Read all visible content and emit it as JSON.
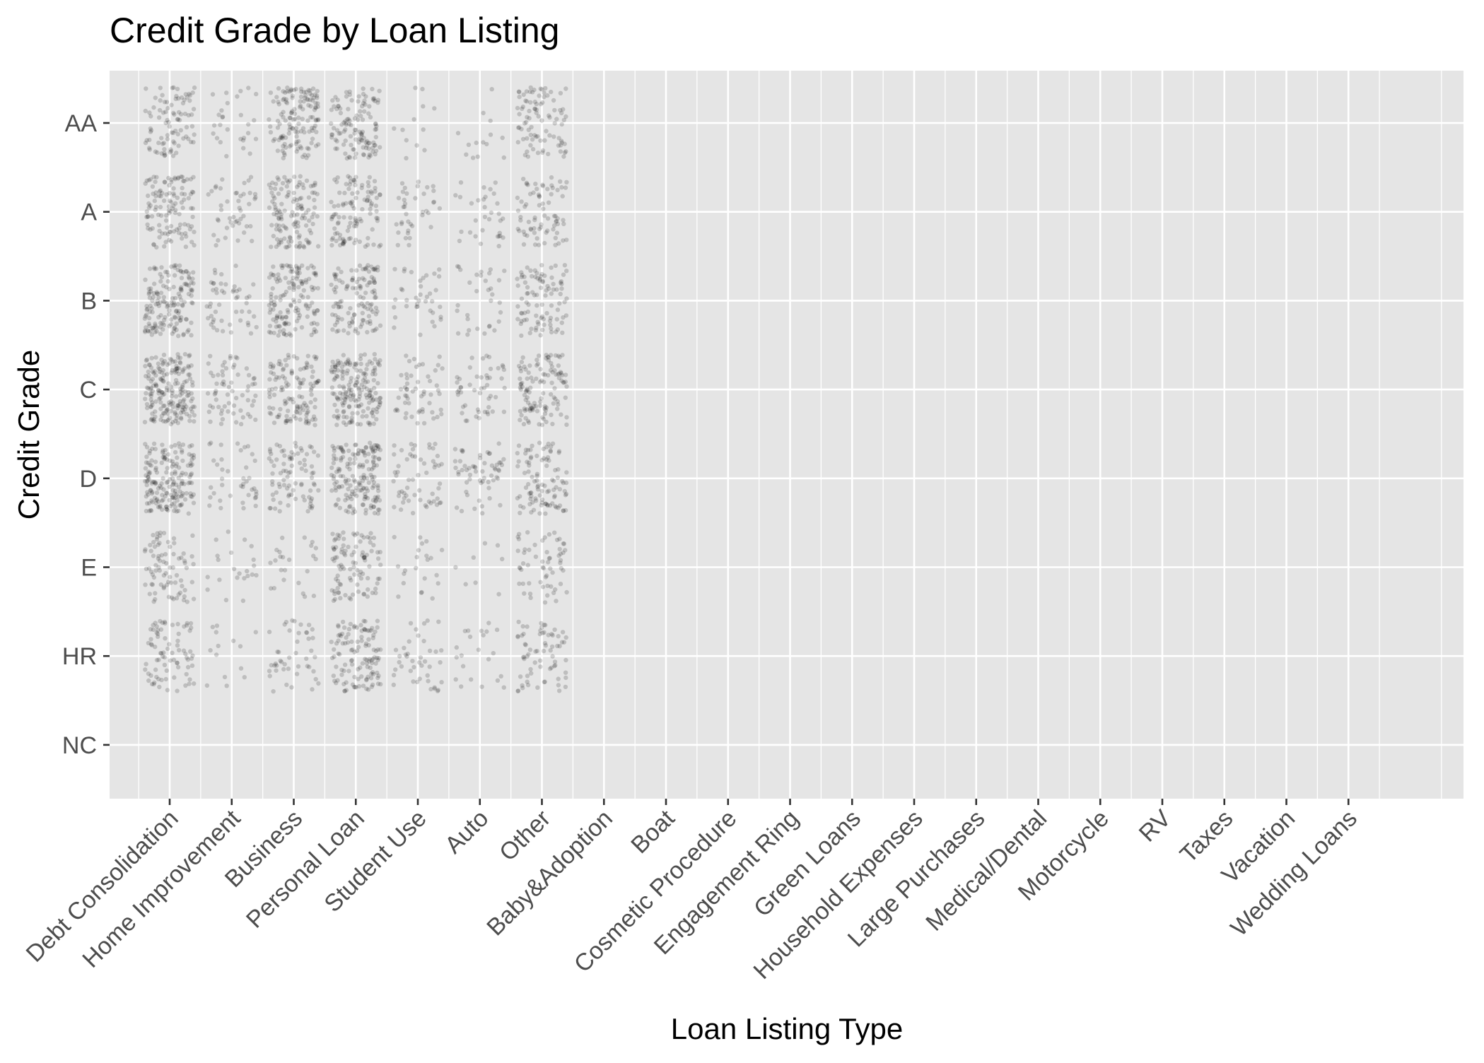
{
  "chart_data": {
    "type": "scatter",
    "jitter": true,
    "title": "Credit Grade by Loan Listing",
    "xlabel": "Loan Listing Type",
    "ylabel": "Credit Grade",
    "x_categories": [
      "Debt Consolidation",
      "Home Improvement",
      "Business",
      "Personal Loan",
      "Student Use",
      "Auto",
      "Other",
      "Baby&Adoption",
      "Boat",
      "Cosmetic Procedure",
      "Engagement Ring",
      "Green Loans",
      "Household Expenses",
      "Large Purchases",
      "Medical/Dental",
      "Motorcycle",
      "RV",
      "Taxes",
      "Vacation",
      "Wedding Loans"
    ],
    "y_categories": [
      "AA",
      "A",
      "B",
      "C",
      "D",
      "E",
      "HR",
      "NC"
    ],
    "grid": true,
    "legend": "none",
    "colors": {
      "panel": "#e5e5e5",
      "grid": "#ffffff",
      "point": "#000000",
      "tick": "#4d4d4d"
    },
    "point_alpha": 0.17,
    "density": [
      [
        90,
        28,
        140,
        120,
        12,
        14,
        90,
        0,
        0,
        0,
        0,
        0,
        0,
        0,
        0,
        0,
        0,
        0,
        0,
        0
      ],
      [
        120,
        45,
        130,
        110,
        38,
        32,
        75,
        0,
        0,
        0,
        0,
        0,
        0,
        0,
        0,
        0,
        0,
        0,
        0,
        0
      ],
      [
        160,
        50,
        145,
        120,
        38,
        32,
        95,
        0,
        0,
        0,
        0,
        0,
        0,
        0,
        0,
        0,
        0,
        0,
        0,
        0
      ],
      [
        200,
        65,
        125,
        180,
        55,
        50,
        120,
        0,
        0,
        0,
        0,
        0,
        0,
        0,
        0,
        0,
        0,
        0,
        0,
        0
      ],
      [
        180,
        40,
        85,
        170,
        58,
        58,
        100,
        0,
        0,
        0,
        0,
        0,
        0,
        0,
        0,
        0,
        0,
        0,
        0,
        0
      ],
      [
        80,
        22,
        24,
        100,
        22,
        8,
        60,
        0,
        0,
        0,
        0,
        0,
        0,
        0,
        0,
        0,
        0,
        0,
        0,
        0
      ],
      [
        80,
        14,
        45,
        120,
        42,
        22,
        70,
        0,
        0,
        0,
        0,
        0,
        0,
        0,
        0,
        0,
        0,
        0,
        0,
        0
      ],
      [
        0,
        0,
        0,
        0,
        0,
        0,
        0,
        0,
        0,
        0,
        0,
        0,
        0,
        0,
        0,
        0,
        0,
        0,
        0,
        0
      ]
    ]
  }
}
